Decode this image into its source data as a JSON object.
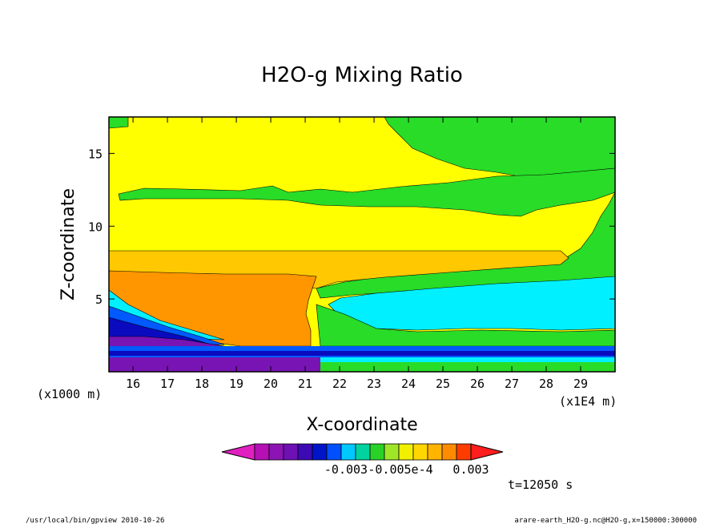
{
  "chart_data": {
    "type": "heatmap",
    "title": "H2O-g Mixing Ratio",
    "xlabel": "X-coordinate",
    "ylabel": "Z-coordinate",
    "x_unit_label": "(x1E4 m)",
    "y_unit_label": "(x1000 m)",
    "x_ticks": [
      "16",
      "17",
      "18",
      "19",
      "20",
      "21",
      "22",
      "23",
      "24",
      "25",
      "26",
      "27",
      "28",
      "29"
    ],
    "y_ticks": [
      "5",
      "10",
      "15"
    ],
    "xlim": [
      15.3,
      30.0
    ],
    "ylim": [
      0.0,
      17.5
    ],
    "colorbar": {
      "tick_labels": [
        "-0.003",
        "-0.005e-4",
        "0.003"
      ],
      "colors": [
        "#e020c0",
        "#b410b4",
        "#8c14b4",
        "#6e10b4",
        "#3c0ab4",
        "#0014c8",
        "#0050ff",
        "#00c8ff",
        "#00d2a0",
        "#28d228",
        "#a0e628",
        "#f0f000",
        "#ffd700",
        "#ffb400",
        "#ff8c00",
        "#ff3c00",
        "#ff1e1e"
      ]
    },
    "region_colors": {
      "yellow": "#ffff00",
      "green": "#28dc28",
      "light_orange": "#ffc800",
      "orange": "#ff9600",
      "cyan": "#00f0ff",
      "blue": "#005aff",
      "dark_blue": "#0a0abe",
      "purple": "#7814b4",
      "violet": "#a028c8"
    }
  },
  "annotations": {
    "time": "t=12050 s",
    "footer_left": "/usr/local/bin/gpview  2010-10-26",
    "footer_right": "arare-earth_H2O-g.nc@H2O-g,x=150000:300000"
  }
}
